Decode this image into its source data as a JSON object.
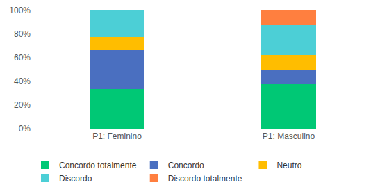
{
  "chart_data": {
    "type": "bar",
    "stacked": true,
    "categories": [
      "P1: Feminino",
      "P1: Masculino"
    ],
    "series": [
      {
        "name": "Concordo totalmente",
        "color": "#00c875",
        "values": [
          33.3,
          37.5
        ]
      },
      {
        "name": "Concordo",
        "color": "#4a6fc0",
        "values": [
          33.3,
          12.5
        ]
      },
      {
        "name": "Neutro",
        "color": "#ffbd00",
        "values": [
          11.1,
          12.5
        ]
      },
      {
        "name": "Discordo",
        "color": "#4ccfd6",
        "values": [
          22.2,
          25
        ]
      },
      {
        "name": "Discordo totalmente",
        "color": "#ff7f3f",
        "values": [
          0,
          12.5
        ]
      }
    ],
    "ylim": [
      0,
      100
    ],
    "yticks": [
      {
        "value": 0,
        "label": "0%"
      },
      {
        "value": 20,
        "label": "20%"
      },
      {
        "value": 40,
        "label": "40%"
      },
      {
        "value": 60,
        "label": "60%"
      },
      {
        "value": 80,
        "label": "80%"
      },
      {
        "value": 100,
        "label": "100%"
      }
    ],
    "grid": false,
    "legend": "bottom"
  }
}
